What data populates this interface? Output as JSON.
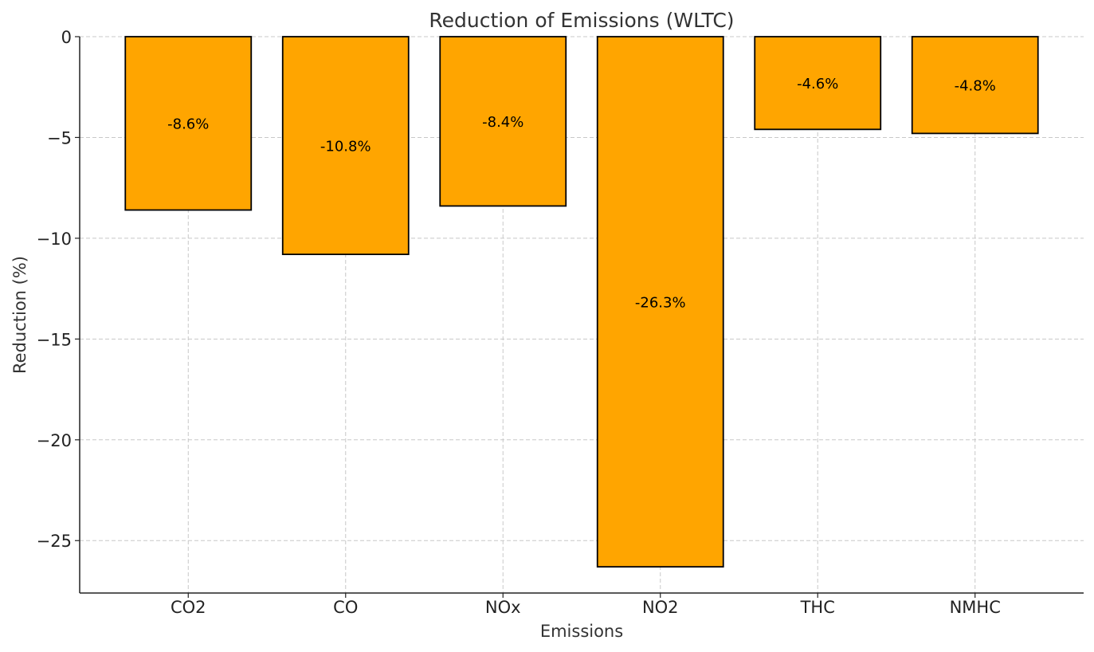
{
  "chart_data": {
    "type": "bar",
    "title": "Reduction of Emissions (WLTC)",
    "xlabel": "Emissions",
    "ylabel": "Reduction (%)",
    "categories": [
      "CO2",
      "CO",
      "NOx",
      "NO2",
      "THC",
      "NMHC"
    ],
    "values": [
      -8.6,
      -10.8,
      -8.4,
      -26.3,
      -4.6,
      -4.8
    ],
    "data_labels": [
      "-8.6%",
      "-10.8%",
      "-8.4%",
      "-26.3%",
      "-4.6%",
      "-4.8%"
    ],
    "ylim": [
      -27.6,
      0
    ],
    "yticks": [
      0,
      -5,
      -10,
      -15,
      -20,
      -25
    ],
    "ytick_labels": [
      "0",
      "−5",
      "−10",
      "−15",
      "−20",
      "−25"
    ],
    "grid": true,
    "colors": {
      "bar": "#FFA500",
      "edge": "#000000"
    }
  }
}
